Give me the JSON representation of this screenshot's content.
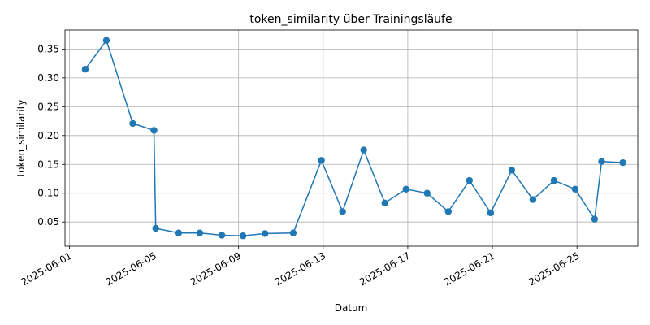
{
  "chart_data": {
    "type": "line",
    "title": "token_similarity über Trainingsläufe",
    "xlabel": "Datum",
    "ylabel": "token_similarity",
    "x_kind": "date",
    "xlim": [
      "2025-05-31T19:00",
      "2025-06-27T21:00"
    ],
    "ylim": [
      0.008,
      0.383
    ],
    "x_ticks": [
      "2025-06-01",
      "2025-06-05",
      "2025-06-09",
      "2025-06-13",
      "2025-06-17",
      "2025-06-21",
      "2025-06-25"
    ],
    "y_ticks": [
      0.05,
      0.1,
      0.15,
      0.2,
      0.25,
      0.3,
      0.35
    ],
    "y_tick_labels": [
      "0.05",
      "0.10",
      "0.15",
      "0.20",
      "0.25",
      "0.30",
      "0.35"
    ],
    "grid": true,
    "color": "#1f77b4",
    "series": [
      {
        "points": [
          {
            "x": "2025-06-01T18:00",
            "y": 0.315
          },
          {
            "x": "2025-06-02T18:00",
            "y": 0.365
          },
          {
            "x": "2025-06-04T00:00",
            "y": 0.221
          },
          {
            "x": "2025-06-05T00:00",
            "y": 0.209
          },
          {
            "x": "2025-06-05T02:00",
            "y": 0.039
          },
          {
            "x": "2025-06-06T04:00",
            "y": 0.031
          },
          {
            "x": "2025-06-07T04:00",
            "y": 0.031
          },
          {
            "x": "2025-06-08T05:00",
            "y": 0.027
          },
          {
            "x": "2025-06-09T05:00",
            "y": 0.026
          },
          {
            "x": "2025-06-10T06:00",
            "y": 0.03
          },
          {
            "x": "2025-06-11T14:00",
            "y": 0.031
          },
          {
            "x": "2025-06-12T22:00",
            "y": 0.157
          },
          {
            "x": "2025-06-13T22:00",
            "y": 0.068
          },
          {
            "x": "2025-06-14T22:00",
            "y": 0.175
          },
          {
            "x": "2025-06-15T22:00",
            "y": 0.083
          },
          {
            "x": "2025-06-16T22:00",
            "y": 0.107
          },
          {
            "x": "2025-06-17T22:00",
            "y": 0.1
          },
          {
            "x": "2025-06-18T22:00",
            "y": 0.068
          },
          {
            "x": "2025-06-19T22:00",
            "y": 0.122
          },
          {
            "x": "2025-06-20T22:00",
            "y": 0.066
          },
          {
            "x": "2025-06-21T22:00",
            "y": 0.14
          },
          {
            "x": "2025-06-22T22:00",
            "y": 0.089
          },
          {
            "x": "2025-06-23T22:00",
            "y": 0.122
          },
          {
            "x": "2025-06-24T22:00",
            "y": 0.107
          },
          {
            "x": "2025-06-25T20:00",
            "y": 0.055
          },
          {
            "x": "2025-06-26T04:00",
            "y": 0.155
          },
          {
            "x": "2025-06-27T04:00",
            "y": 0.153
          }
        ]
      }
    ]
  }
}
